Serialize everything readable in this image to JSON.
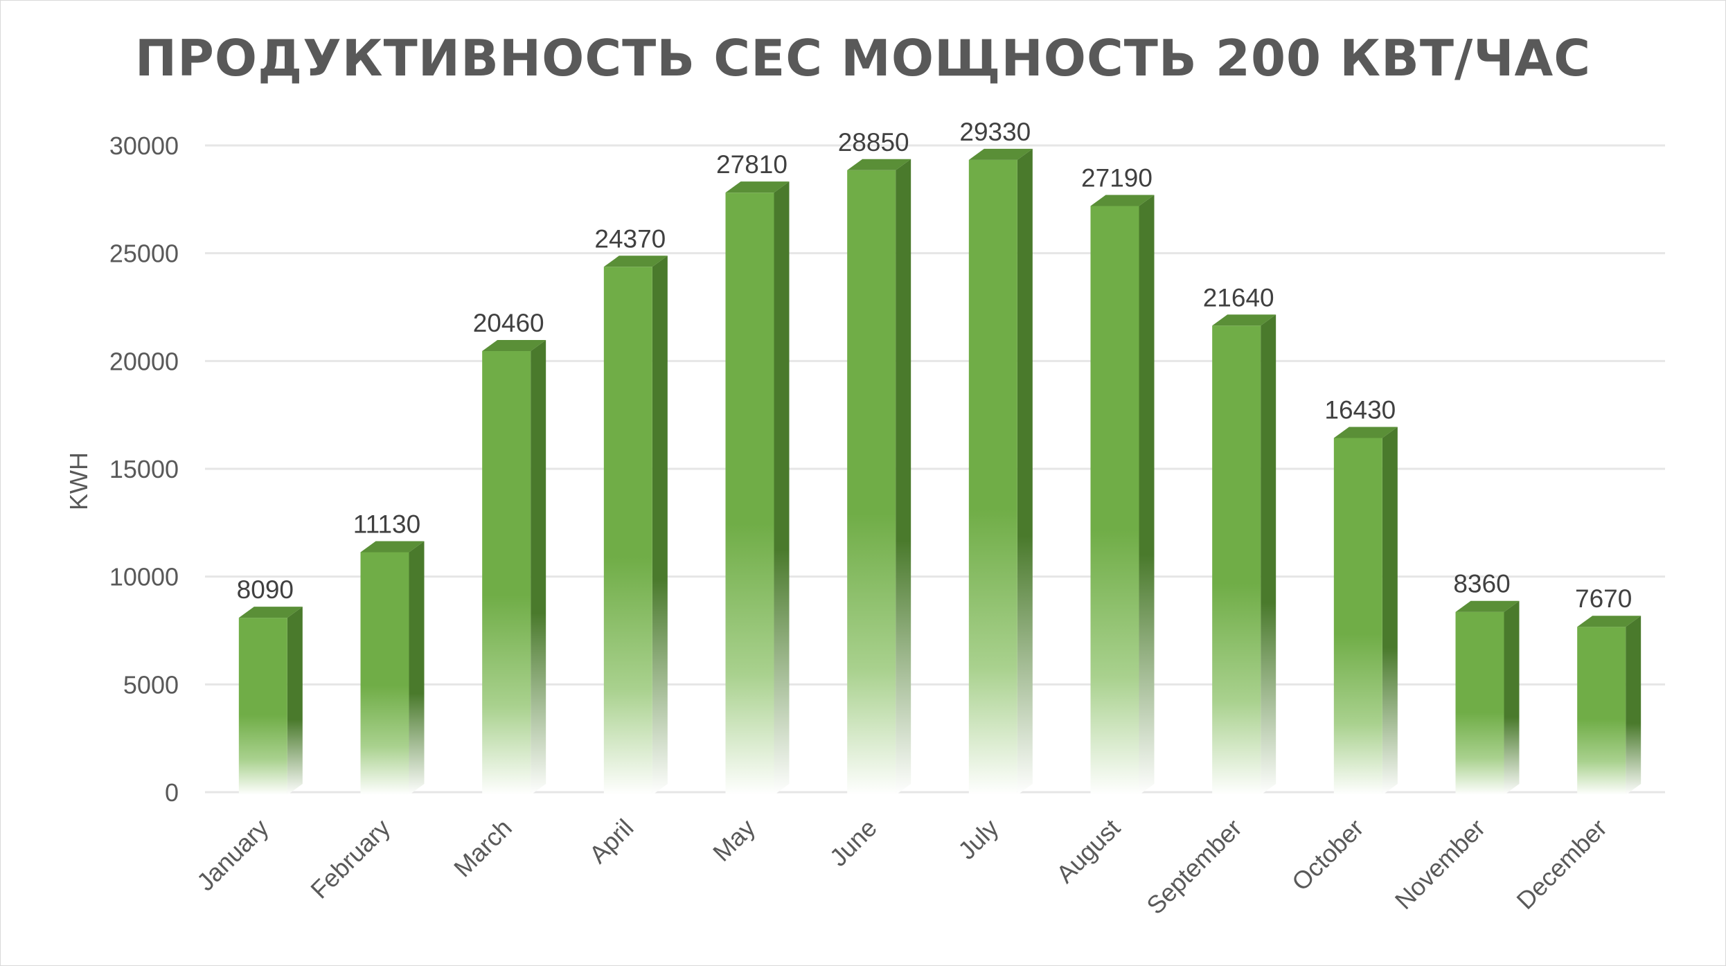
{
  "chart_data": {
    "type": "bar",
    "title": "ПРОДУКТИВНОСТЬ СЕС МОЩНОСТЬ 200 КВТ/ЧАС",
    "xlabel": "",
    "ylabel": "KWH",
    "categories": [
      "January",
      "February",
      "March",
      "April",
      "May",
      "June",
      "July",
      "August",
      "September",
      "October",
      "November",
      "December"
    ],
    "values": [
      8090,
      11130,
      20460,
      24370,
      27810,
      28850,
      29330,
      27190,
      21640,
      16430,
      8360,
      7670
    ],
    "ylim": [
      0,
      30000
    ],
    "yticks": [
      0,
      5000,
      10000,
      15000,
      20000,
      25000,
      30000
    ],
    "grid": true,
    "legend": "none",
    "style": "3d-column-gradient",
    "colors": {
      "front_top": "#70ad47",
      "side": "#4a7a2c",
      "top": "#5a8f37"
    }
  }
}
